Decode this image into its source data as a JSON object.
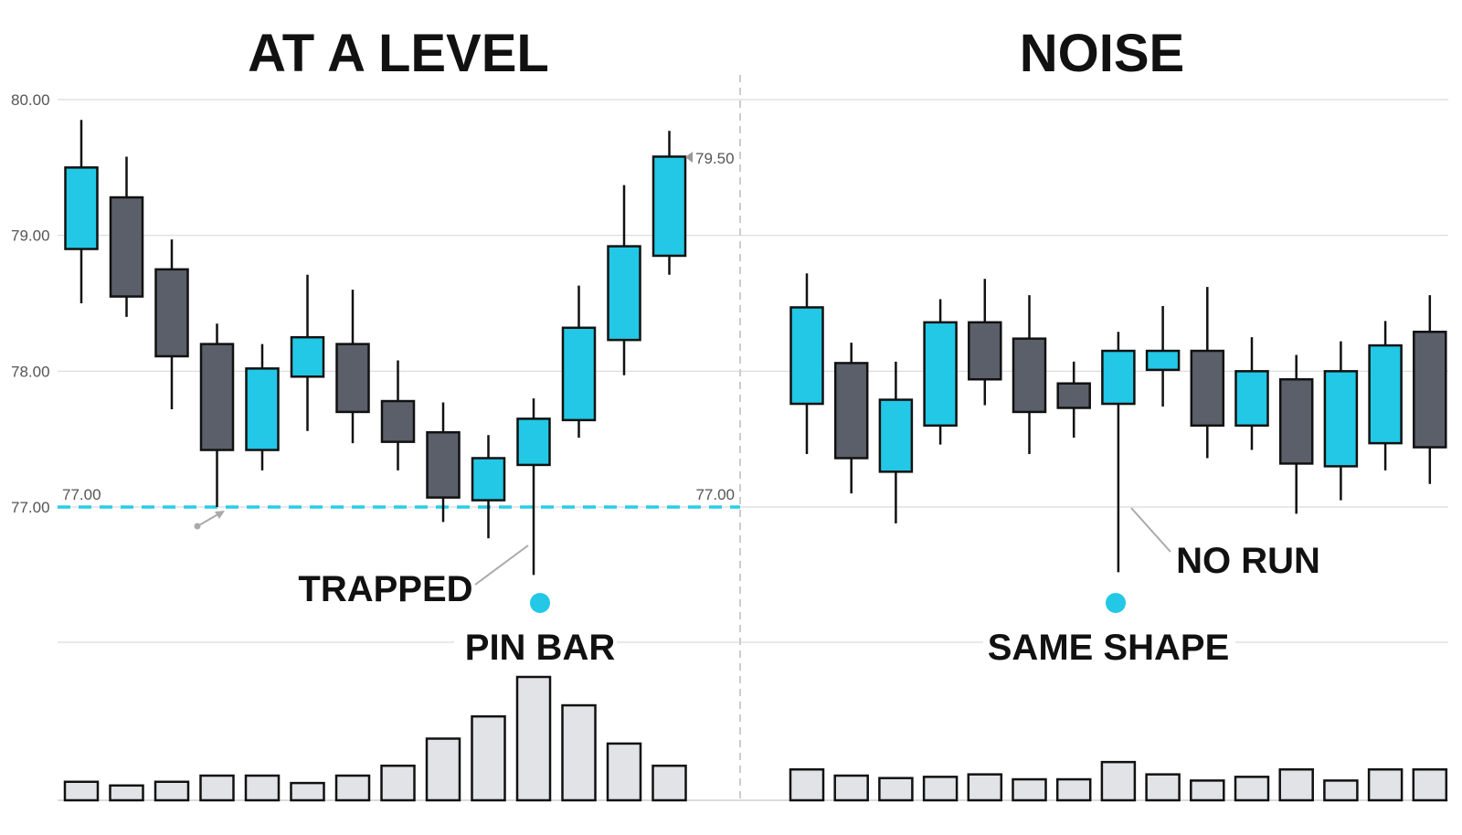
{
  "chart_data": {
    "type": "candlestick",
    "y_ticks": [
      "80.00",
      "79.00",
      "78.00",
      "77.00"
    ],
    "ylim": [
      76.0,
      80.0
    ],
    "grid": "horizontal",
    "colors": {
      "bull": "#22c8e5",
      "bear": "#5a5f69",
      "outline": "#111111",
      "volume": "#e1e3e6",
      "level": "#29cde6",
      "marker": "#22c8e5"
    },
    "panels": [
      {
        "title": "AT A LEVEL",
        "level": {
          "value": 77.0,
          "label_left": "77.00",
          "label_right": "77.00"
        },
        "price_tag": "79.50",
        "annotations": {
          "trapped": "TRAPPED",
          "pattern": "PIN BAR"
        },
        "pin_index": 10,
        "candles": [
          {
            "o": 78.9,
            "h": 79.85,
            "l": 78.5,
            "c": 79.5
          },
          {
            "o": 79.28,
            "h": 79.58,
            "l": 78.4,
            "c": 78.55
          },
          {
            "o": 78.75,
            "h": 78.97,
            "l": 77.72,
            "c": 78.11
          },
          {
            "o": 78.2,
            "h": 78.35,
            "l": 77.0,
            "c": 77.42
          },
          {
            "o": 77.42,
            "h": 78.2,
            "l": 77.27,
            "c": 78.02
          },
          {
            "o": 77.96,
            "h": 78.71,
            "l": 77.56,
            "c": 78.25
          },
          {
            "o": 78.2,
            "h": 78.6,
            "l": 77.47,
            "c": 77.7
          },
          {
            "o": 77.78,
            "h": 78.08,
            "l": 77.27,
            "c": 77.48
          },
          {
            "o": 77.55,
            "h": 77.77,
            "l": 76.89,
            "c": 77.07
          },
          {
            "o": 77.05,
            "h": 77.53,
            "l": 76.77,
            "c": 77.36
          },
          {
            "o": 77.31,
            "h": 77.8,
            "l": 76.5,
            "c": 77.65
          },
          {
            "o": 77.64,
            "h": 78.63,
            "l": 77.51,
            "c": 78.32
          },
          {
            "o": 78.23,
            "h": 79.37,
            "l": 77.97,
            "c": 78.92
          },
          {
            "o": 78.85,
            "h": 79.77,
            "l": 78.71,
            "c": 79.58
          }
        ],
        "volume": [
          15,
          12,
          15,
          20,
          20,
          14,
          20,
          28,
          50,
          68,
          100,
          77,
          46,
          28
        ]
      },
      {
        "title": "NOISE",
        "annotations": {
          "no_run": "NO RUN",
          "pattern": "SAME SHAPE"
        },
        "pin_index": 7,
        "candles": [
          {
            "o": 77.76,
            "h": 78.72,
            "l": 77.39,
            "c": 78.47
          },
          {
            "o": 78.06,
            "h": 78.21,
            "l": 77.1,
            "c": 77.36
          },
          {
            "o": 77.26,
            "h": 78.07,
            "l": 76.88,
            "c": 77.79
          },
          {
            "o": 77.6,
            "h": 78.53,
            "l": 77.46,
            "c": 78.36
          },
          {
            "o": 78.36,
            "h": 78.68,
            "l": 77.75,
            "c": 77.94
          },
          {
            "o": 78.24,
            "h": 78.56,
            "l": 77.39,
            "c": 77.7
          },
          {
            "o": 77.91,
            "h": 78.07,
            "l": 77.51,
            "c": 77.73
          },
          {
            "o": 77.76,
            "h": 78.29,
            "l": 76.52,
            "c": 78.15
          },
          {
            "o": 78.01,
            "h": 78.48,
            "l": 77.74,
            "c": 78.15
          },
          {
            "o": 78.15,
            "h": 78.62,
            "l": 77.36,
            "c": 77.6
          },
          {
            "o": 77.6,
            "h": 78.25,
            "l": 77.42,
            "c": 78.0
          },
          {
            "o": 77.94,
            "h": 78.12,
            "l": 76.95,
            "c": 77.32
          },
          {
            "o": 77.3,
            "h": 78.22,
            "l": 77.05,
            "c": 78.0
          },
          {
            "o": 77.47,
            "h": 78.37,
            "l": 77.27,
            "c": 78.19
          },
          {
            "o": 78.29,
            "h": 78.56,
            "l": 77.17,
            "c": 77.44
          }
        ],
        "volume": [
          25,
          20,
          18,
          19,
          21,
          17,
          17,
          31,
          21,
          16,
          19,
          25,
          16,
          25,
          25
        ]
      }
    ]
  }
}
